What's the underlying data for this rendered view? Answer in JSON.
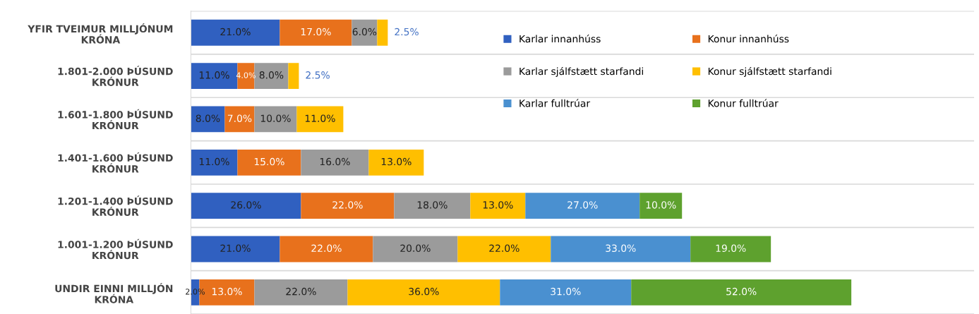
{
  "chart_data": {
    "type": "bar",
    "orientation": "horizontal",
    "stacked": true,
    "categories": [
      "YFIR TVEIMUR MILLJÓNUM\nKRÓNA",
      "1.801-2.000 ÞÚSUND\nKRÓNUR",
      "1.601-1.800 ÞÚSUND\nKRÓNUR",
      "1.401-1.600 ÞÚSUND\nKRÓNUR",
      "1.201-1.400 ÞÚSUND\nKRÓNUR",
      "1.001-1.200 ÞÚSUND\nKRÓNUR",
      "UNDIR EINNI MILLJÓN\nKRÓNA"
    ],
    "series": [
      {
        "name": "Karlar innanhúss",
        "color": "#3060c0",
        "values": [
          21,
          11,
          8,
          11,
          26,
          21,
          2
        ],
        "value_labels": [
          "21.0%",
          "11.0%",
          "8.0%",
          "11.0%",
          "26.0%",
          "21.0%",
          "2.0%"
        ]
      },
      {
        "name": "Konur innanhúss",
        "color": "#e8711c",
        "values": [
          17,
          4,
          7,
          15,
          22,
          22,
          13
        ],
        "value_labels": [
          "17.0%",
          "4.0%",
          "7.0%",
          "15.0%",
          "22.0%",
          "22.0%",
          "13.0%"
        ]
      },
      {
        "name": "Karlar sjálfstætt starfandi",
        "color": "#9b9b9b",
        "values": [
          6,
          8,
          10,
          16,
          18,
          20,
          22
        ],
        "value_labels": [
          "6.0%",
          "8.0%",
          "10.0%",
          "16.0%",
          "18.0%",
          "20.0%",
          "22.0%"
        ]
      },
      {
        "name": "Konur sjálfstætt starfandi",
        "color": "#ffbf00",
        "values": [
          2.5,
          2.5,
          11,
          13,
          13,
          22,
          36
        ],
        "value_labels": [
          "2.5%",
          "2.5%",
          "11.0%",
          "13.0%",
          "13.0%",
          "22.0%",
          "36.0%"
        ]
      },
      {
        "name": "Karlar fulltrúar",
        "color": "#4a90d0",
        "values": [
          null,
          null,
          null,
          null,
          27,
          33,
          31
        ],
        "value_labels": [
          null,
          null,
          null,
          null,
          "27.0%",
          "33.0%",
          "31.0%"
        ]
      },
      {
        "name": "Konur fulltrúar",
        "color": "#5ea12e",
        "values": [
          null,
          null,
          null,
          null,
          10,
          19,
          52
        ],
        "value_labels": [
          null,
          null,
          null,
          null,
          "10.0%",
          "19.0%",
          "52.0%"
        ]
      }
    ],
    "xlim": [
      0,
      185
    ],
    "tick_labels": "y",
    "grid": "y",
    "legend": "top right"
  }
}
